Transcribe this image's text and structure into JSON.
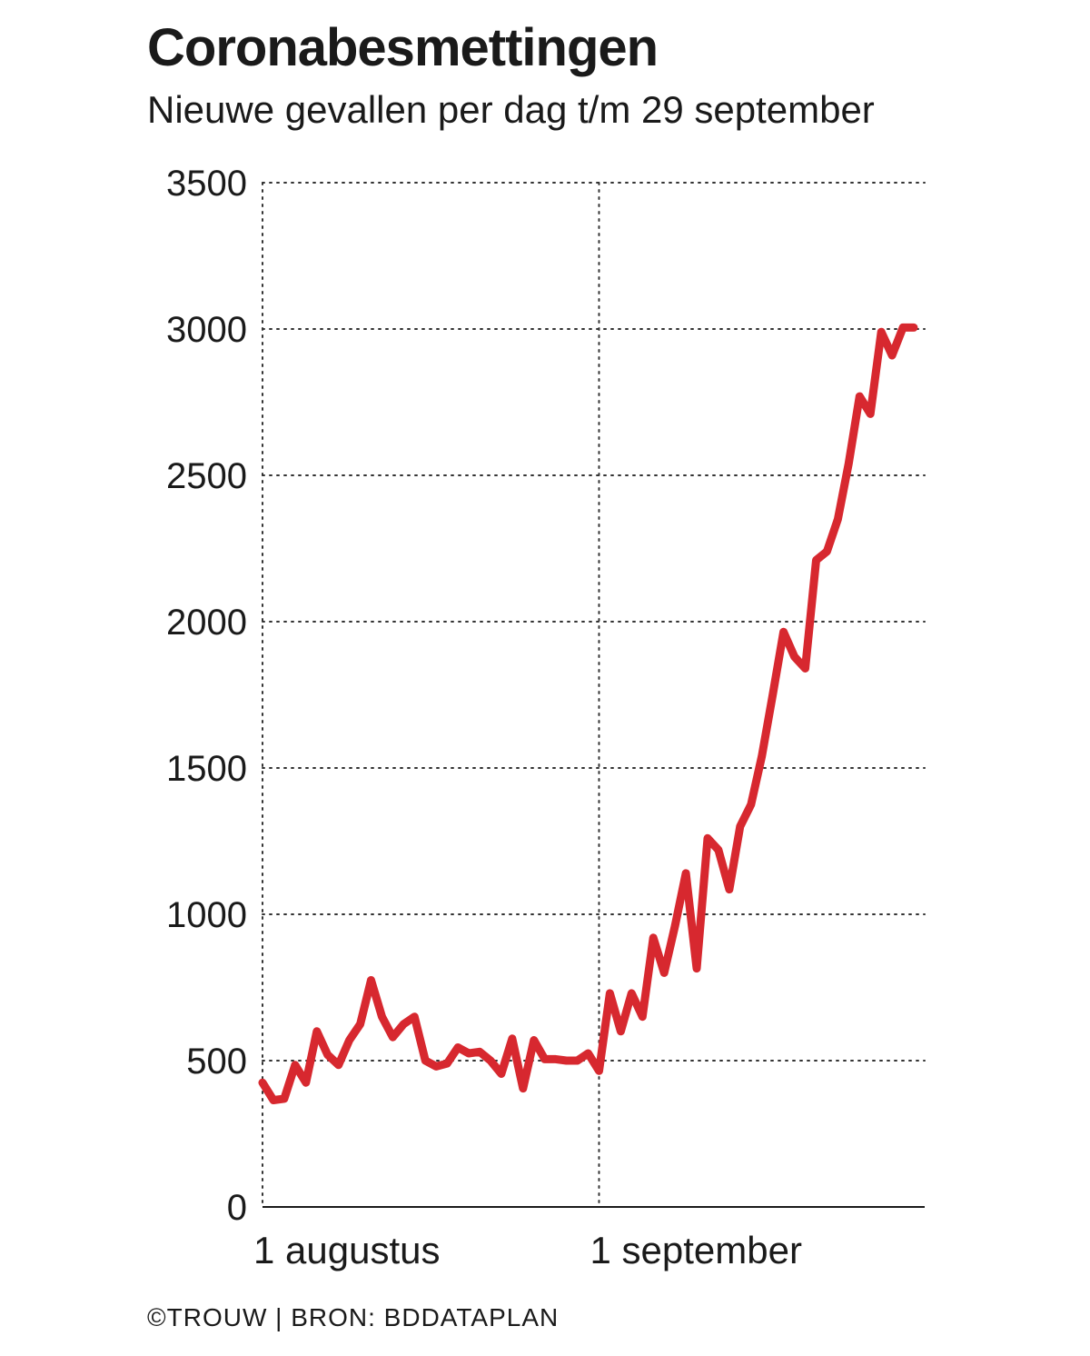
{
  "header": {
    "title": "Coronabesmettingen",
    "subtitle": "Nieuwe gevallen per dag t/m 29 september"
  },
  "footer": {
    "source": "©TROUW | BRON: BDDATAPLAN"
  },
  "colors": {
    "line": "#d7282f",
    "text": "#1a1a1a",
    "grid": "#333333"
  },
  "chart_data": {
    "type": "line",
    "title": "Coronabesmettingen",
    "subtitle": "Nieuwe gevallen per dag t/m 29 september",
    "xlabel": "",
    "ylabel": "",
    "ylim": [
      0,
      3500
    ],
    "yticks": [
      0,
      500,
      1000,
      1500,
      2000,
      2500,
      3000,
      3500
    ],
    "xtick_labels": [
      {
        "label": "1 augustus",
        "day": 1
      },
      {
        "label": "1 september",
        "day": 32
      }
    ],
    "grid": true,
    "legend": "none",
    "series": [
      {
        "x": [
          1,
          2,
          3,
          4,
          5,
          6,
          7,
          8,
          9,
          10,
          11,
          12,
          13,
          14,
          15,
          16,
          17,
          18,
          19,
          20,
          21,
          22,
          23,
          24,
          25,
          26,
          27,
          28,
          29,
          30,
          31,
          32,
          33,
          34,
          35,
          36,
          37,
          38,
          39,
          40,
          41,
          42,
          43,
          44,
          45,
          46,
          47,
          48,
          49,
          50,
          51,
          52,
          53,
          54,
          55,
          56,
          57,
          58,
          59,
          60,
          61
        ],
        "values": [
          425,
          365,
          370,
          485,
          425,
          600,
          520,
          485,
          570,
          625,
          775,
          650,
          580,
          625,
          650,
          500,
          480,
          490,
          545,
          525,
          530,
          500,
          455,
          575,
          405,
          570,
          505,
          505,
          500,
          500,
          525,
          465,
          730,
          600,
          730,
          650,
          920,
          800,
          960,
          1140,
          815,
          1260,
          1220,
          1085,
          1300,
          1375,
          1540,
          1750,
          1965,
          1880,
          1840,
          2210,
          2240,
          2350,
          2540,
          2770,
          2710,
          2990,
          2910,
          3005,
          3005
        ]
      }
    ]
  }
}
